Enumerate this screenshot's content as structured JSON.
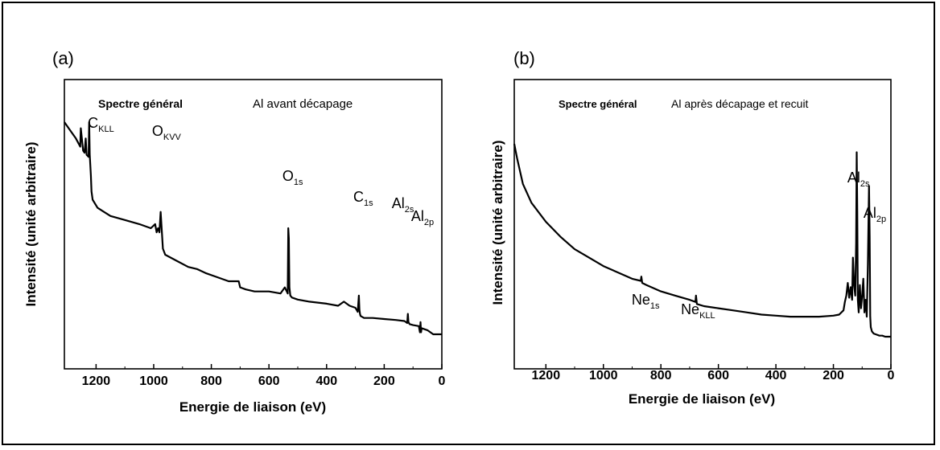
{
  "chart_data": [
    {
      "type": "line",
      "panel_label": "(a)",
      "xlabel": "Energie de liaison (eV)",
      "ylabel": "Intensité (unité arbitraire)",
      "xlim": [
        1310,
        0
      ],
      "x_ticks": [
        1200,
        1000,
        800,
        600,
        400,
        200,
        0
      ],
      "y_ticks_labeled": false,
      "annotation": {
        "bold": "Spectre général",
        "plain": "Al avant décapage"
      },
      "peak_labels": [
        {
          "main": "C",
          "sub": "KLL",
          "x": 1223
        },
        {
          "main": "O",
          "sub": "KVV",
          "x": 978
        },
        {
          "main": "O",
          "sub": "1s",
          "x": 531
        },
        {
          "main": "C",
          "sub": "1s",
          "x": 285
        },
        {
          "main": "Al",
          "sub": "2s",
          "x": 118
        },
        {
          "main": "Al",
          "sub": "2p",
          "x": 73
        }
      ],
      "series": [
        {
          "x": [
            1310,
            1290,
            1270,
            1255,
            1253,
            1245,
            1240,
            1236,
            1233,
            1226,
            1224,
            1222,
            1218,
            1216,
            1212,
            1195,
            1150,
            1100,
            1050,
            1010,
            995,
            990,
            985,
            980,
            976,
            972,
            968,
            960,
            920,
            880,
            850,
            820,
            780,
            740,
            705,
            700,
            680,
            650,
            600,
            560,
            545,
            535,
            533,
            531,
            529,
            526,
            520,
            500,
            460,
            400,
            360,
            340,
            320,
            300,
            292,
            288,
            286,
            284,
            282,
            270,
            240,
            200,
            160,
            130,
            120,
            118,
            116,
            112,
            100,
            80,
            76,
            74,
            72,
            70,
            50,
            30,
            10,
            0
          ],
          "y": [
            100,
            96,
            92,
            88,
            97,
            86,
            85,
            92,
            84,
            83,
            100,
            84,
            74,
            66,
            62,
            58,
            54,
            52,
            50,
            48,
            50,
            46,
            48,
            46,
            56,
            47,
            38,
            35,
            32,
            29,
            28,
            26,
            24,
            22,
            22,
            19,
            18,
            17,
            17,
            16,
            19,
            16,
            48,
            43,
            19,
            15,
            14,
            13,
            12,
            11,
            10,
            12,
            10,
            9,
            7,
            15,
            8,
            6,
            5,
            4,
            4,
            3.5,
            3,
            2.5,
            1.5,
            6,
            2,
            1,
            0.5,
            0,
            -3,
            2,
            -3,
            -1,
            -2,
            -4,
            -4,
            -4
          ]
        }
      ]
    },
    {
      "type": "line",
      "panel_label": "(b)",
      "xlabel": "Energie de liaison (eV)",
      "ylabel": "Intensité (unité arbitraire)",
      "xlim": [
        1310,
        0
      ],
      "x_ticks": [
        1200,
        1000,
        800,
        600,
        400,
        200,
        0
      ],
      "y_ticks_labeled": false,
      "annotation": {
        "bold": "Spectre général",
        "plain": "Al après décapage et recuit"
      },
      "peak_labels": [
        {
          "main": "Al",
          "sub": "2s",
          "x": 118
        },
        {
          "main": "Al",
          "sub": "2p",
          "x": 73
        },
        {
          "main": "Ne",
          "sub": "1s",
          "x": 868
        },
        {
          "main": "Ne",
          "sub": "KLL",
          "x": 680
        }
      ],
      "series": [
        {
          "x": [
            1310,
            1300,
            1280,
            1250,
            1200,
            1150,
            1100,
            1050,
            1000,
            950,
            900,
            870,
            868,
            865,
            850,
            800,
            750,
            700,
            680,
            678,
            675,
            650,
            600,
            550,
            500,
            450,
            400,
            350,
            300,
            250,
            200,
            180,
            165,
            160,
            155,
            150,
            145,
            140,
            135,
            132,
            128,
            124,
            121,
            119,
            117,
            115,
            112,
            108,
            104,
            100,
            96,
            92,
            88,
            84,
            80,
            76,
            74,
            72,
            70,
            66,
            60,
            50,
            40,
            30,
            20,
            10,
            0
          ],
          "y": [
            92,
            85,
            73,
            64,
            55,
            48,
            42,
            38,
            34,
            31,
            28,
            27,
            29,
            26,
            25,
            22,
            20,
            18,
            17,
            20,
            16,
            15,
            14,
            13,
            12,
            11,
            10.5,
            10,
            10,
            10,
            10.5,
            11,
            13,
            17,
            20,
            26,
            19,
            24,
            18,
            38,
            25,
            20,
            45,
            88,
            60,
            18,
            12,
            25,
            14,
            20,
            28,
            12,
            18,
            10,
            35,
            72,
            48,
            10,
            5,
            3,
            2,
            1.5,
            1,
            1,
            0.5,
            0.5,
            0.5
          ]
        }
      ]
    }
  ]
}
